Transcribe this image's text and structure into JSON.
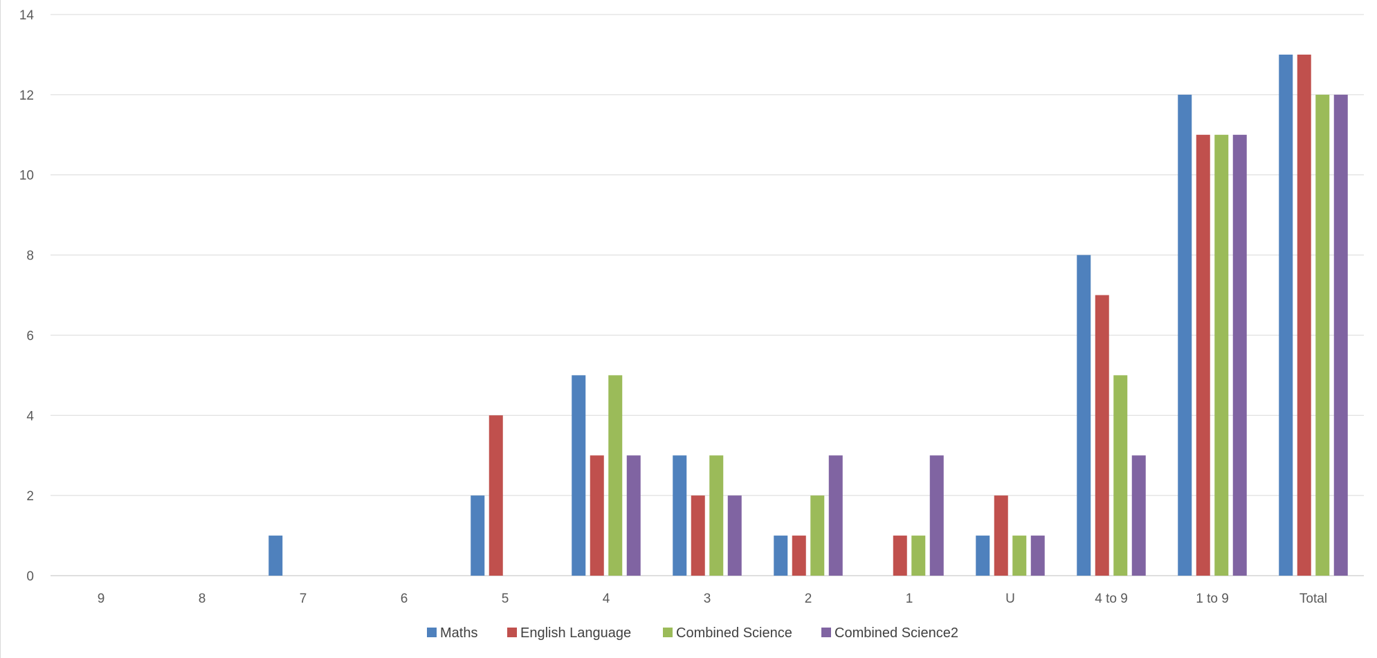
{
  "chart_data": {
    "type": "bar",
    "categories": [
      "9",
      "8",
      "7",
      "6",
      "5",
      "4",
      "3",
      "2",
      "1",
      "U",
      "4 to 9",
      "1 to 9",
      "Total"
    ],
    "series": [
      {
        "name": "Maths",
        "color": "#4f81bd",
        "values": [
          0,
          0,
          1,
          0,
          2,
          5,
          3,
          1,
          0,
          1,
          8,
          12,
          13
        ]
      },
      {
        "name": "English Language",
        "color": "#c0504d",
        "values": [
          0,
          0,
          0,
          0,
          4,
          3,
          2,
          1,
          1,
          2,
          7,
          11,
          13
        ]
      },
      {
        "name": "Combined Science",
        "color": "#9bbb59",
        "values": [
          0,
          0,
          0,
          0,
          0,
          5,
          3,
          2,
          1,
          1,
          5,
          11,
          12
        ]
      },
      {
        "name": "Combined Science2",
        "color": "#8064a2",
        "values": [
          0,
          0,
          0,
          0,
          0,
          3,
          2,
          3,
          3,
          1,
          3,
          11,
          12
        ]
      }
    ],
    "y_ticks": [
      "0",
      "2",
      "4",
      "6",
      "8",
      "10",
      "12",
      "14"
    ],
    "ylim": [
      0,
      14
    ],
    "grid": true,
    "legend_position": "bottom"
  }
}
